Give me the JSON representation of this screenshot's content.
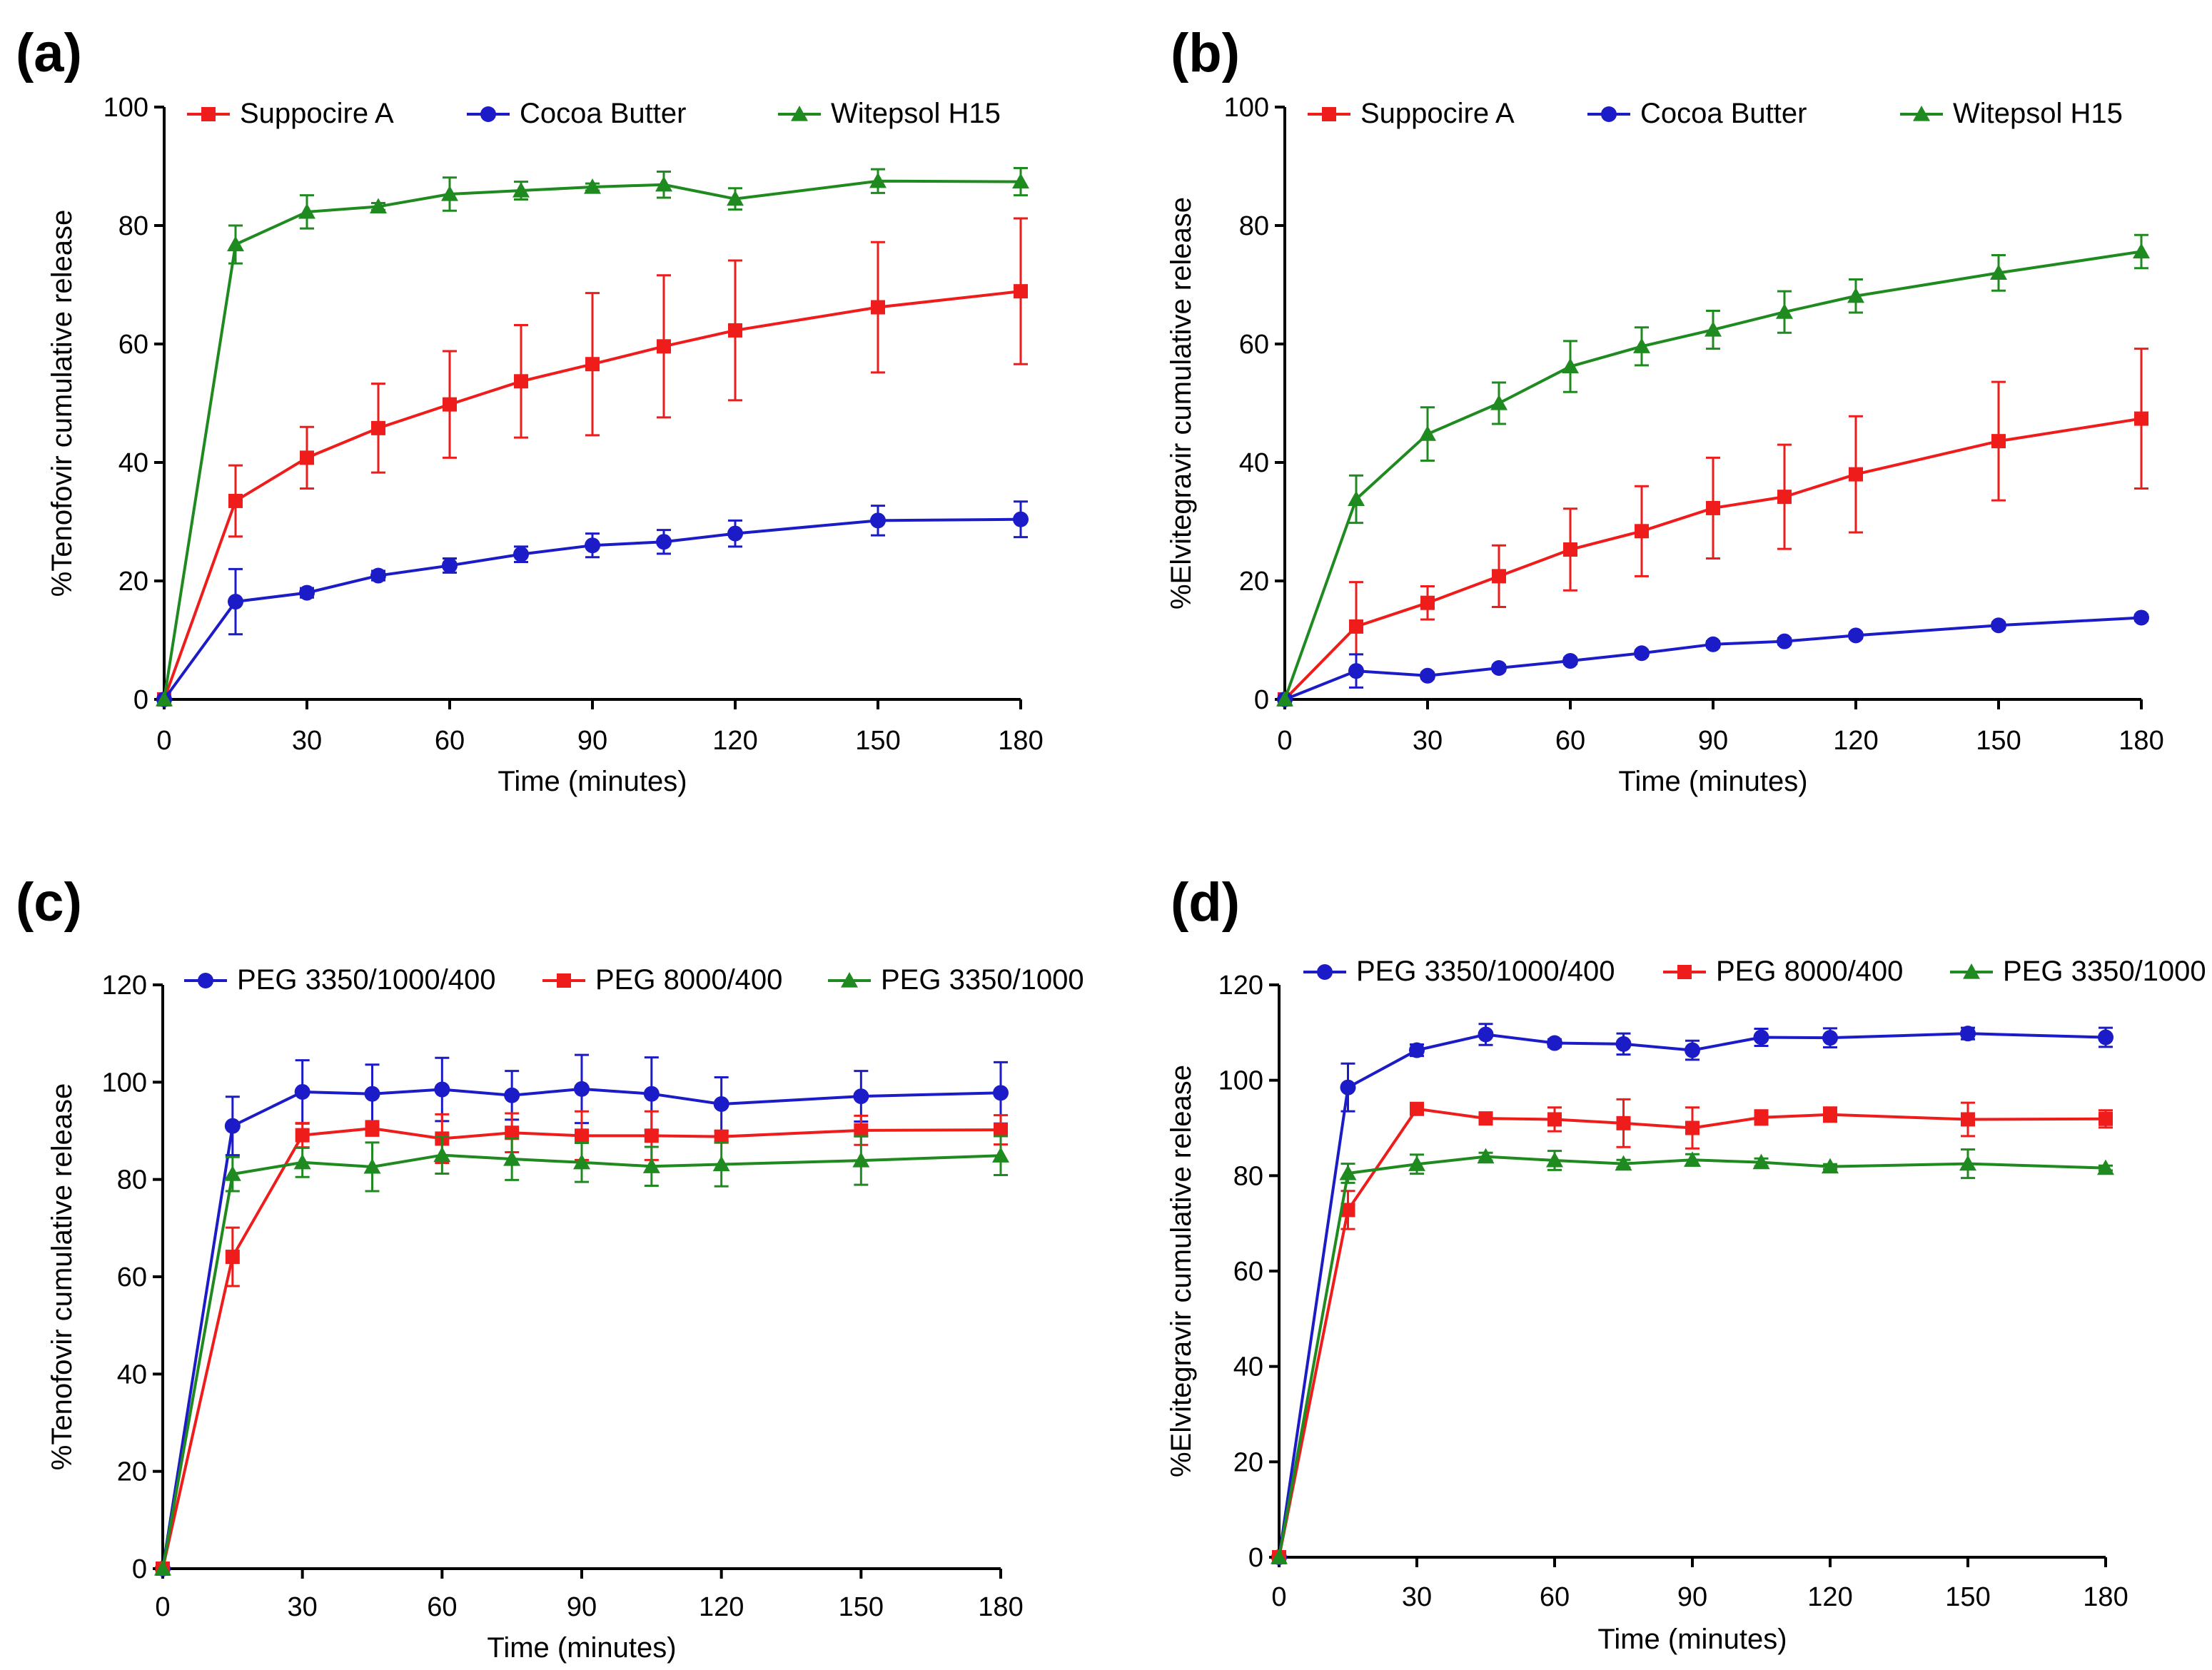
{
  "figure": {
    "colors": {
      "red": "#ef1c1c",
      "blue": "#1b1bc8",
      "green": "#1f8a1f",
      "axis": "#000000"
    }
  },
  "chart_data": [
    {
      "panel": "(a)",
      "type": "line",
      "xlabel": "Time (minutes)",
      "ylabel": "%Tenofovir cumulative release",
      "xlim": [
        0,
        180
      ],
      "ylim": [
        0,
        100
      ],
      "xticks": [
        0,
        30,
        60,
        90,
        120,
        150,
        180
      ],
      "yticks": [
        0,
        20,
        40,
        60,
        80,
        100
      ],
      "legend_position": "top",
      "series": [
        {
          "name": "Suppocire A",
          "color": "#ef1c1c",
          "marker": "square",
          "x": [
            0,
            15,
            30,
            45,
            60,
            75,
            90,
            105,
            120,
            150,
            180
          ],
          "y": [
            0,
            33.5,
            40.8,
            45.8,
            49.8,
            53.7,
            56.6,
            59.6,
            62.3,
            66.2,
            68.9
          ],
          "err": [
            0,
            6,
            5.2,
            7.5,
            9,
            9.5,
            12,
            12,
            11.8,
            11,
            12.3
          ]
        },
        {
          "name": "Cocoa Butter",
          "color": "#1b1bc8",
          "marker": "circle",
          "x": [
            0,
            15,
            30,
            45,
            60,
            75,
            90,
            105,
            120,
            150,
            180
          ],
          "y": [
            0,
            16.5,
            18,
            20.9,
            22.6,
            24.5,
            26,
            26.6,
            28,
            30.2,
            30.4
          ],
          "err": [
            0,
            5.5,
            0.8,
            0.8,
            1.2,
            1.3,
            2,
            2,
            2.2,
            2.5,
            3
          ]
        },
        {
          "name": "Witepsol H15",
          "color": "#1f8a1f",
          "marker": "triangle",
          "x": [
            0,
            15,
            30,
            45,
            60,
            75,
            90,
            105,
            120,
            150,
            180
          ],
          "y": [
            0,
            76.8,
            82.3,
            83.2,
            85.3,
            85.9,
            86.5,
            86.9,
            84.5,
            87.5,
            87.4
          ],
          "err": [
            0,
            3.2,
            2.8,
            0.6,
            2.8,
            1.5,
            0.6,
            2.2,
            1.8,
            2,
            2.3
          ]
        }
      ]
    },
    {
      "panel": "(b)",
      "type": "line",
      "xlabel": "Time (minutes)",
      "ylabel": "%Elvitegravir cumulative release",
      "xlim": [
        0,
        180
      ],
      "ylim": [
        0,
        100
      ],
      "xticks": [
        0,
        30,
        60,
        90,
        120,
        150,
        180
      ],
      "yticks": [
        0,
        20,
        40,
        60,
        80,
        100
      ],
      "legend_position": "top",
      "series": [
        {
          "name": "Suppocire A",
          "color": "#ef1c1c",
          "marker": "square",
          "x": [
            0,
            15,
            30,
            45,
            60,
            75,
            90,
            105,
            120,
            150,
            180
          ],
          "y": [
            0,
            12.3,
            16.3,
            20.8,
            25.3,
            28.4,
            32.3,
            34.2,
            38,
            43.6,
            47.4
          ],
          "err": [
            0,
            7.5,
            2.8,
            5.2,
            6.9,
            7.6,
            8.5,
            8.8,
            9.8,
            10,
            11.8
          ]
        },
        {
          "name": "Cocoa Butter",
          "color": "#1b1bc8",
          "marker": "circle",
          "x": [
            0,
            15,
            30,
            45,
            60,
            75,
            90,
            105,
            120,
            150,
            180
          ],
          "y": [
            0,
            4.8,
            4,
            5.3,
            6.5,
            7.8,
            9.3,
            9.8,
            10.8,
            12.5,
            13.8
          ],
          "err": [
            0,
            2.8,
            0.5,
            0.5,
            0.5,
            0.5,
            0.5,
            0.5,
            0.5,
            0.5,
            0.5
          ]
        },
        {
          "name": "Witepsol H15",
          "color": "#1f8a1f",
          "marker": "triangle",
          "x": [
            0,
            15,
            30,
            45,
            60,
            75,
            90,
            105,
            120,
            150,
            180
          ],
          "y": [
            0,
            33.8,
            44.8,
            50,
            56.2,
            59.6,
            62.4,
            65.4,
            68.1,
            72,
            75.6
          ],
          "err": [
            0,
            4,
            4.5,
            3.5,
            4.3,
            3.2,
            3.2,
            3.5,
            2.8,
            3,
            2.8
          ]
        }
      ]
    },
    {
      "panel": "(c)",
      "type": "line",
      "xlabel": "Time (minutes)",
      "ylabel": "%Tenofovir cumulative release",
      "xlim": [
        0,
        180
      ],
      "ylim": [
        0,
        120
      ],
      "xticks": [
        0,
        30,
        60,
        90,
        120,
        150,
        180
      ],
      "yticks": [
        0,
        20,
        40,
        60,
        80,
        100,
        120
      ],
      "legend_position": "top",
      "series": [
        {
          "name": "PEG 3350/1000/400",
          "color": "#1b1bc8",
          "marker": "circle",
          "x": [
            0,
            15,
            30,
            45,
            60,
            75,
            90,
            105,
            120,
            150,
            180
          ],
          "y": [
            0,
            91,
            98,
            97.6,
            98.5,
            97.3,
            98.6,
            97.6,
            95.5,
            97.1,
            97.8
          ],
          "err": [
            0,
            6,
            6.5,
            6,
            6.5,
            5,
            7,
            7.5,
            5.5,
            5.2,
            6.3
          ]
        },
        {
          "name": "PEG 8000/400",
          "color": "#ef1c1c",
          "marker": "square",
          "x": [
            0,
            15,
            30,
            45,
            60,
            75,
            90,
            105,
            120,
            150,
            180
          ],
          "y": [
            0,
            64.1,
            89.1,
            90.5,
            88.4,
            89.6,
            89,
            89,
            88.8,
            90.1,
            90.2
          ],
          "err": [
            0,
            6,
            2.5,
            1.5,
            5,
            4,
            5,
            5,
            1,
            3,
            3
          ]
        },
        {
          "name": "PEG 3350/1000",
          "color": "#1f8a1f",
          "marker": "triangle",
          "x": [
            0,
            15,
            30,
            45,
            60,
            75,
            90,
            105,
            120,
            150,
            180
          ],
          "y": [
            0,
            81.1,
            83.5,
            82.6,
            85,
            84.2,
            83.5,
            82.7,
            83.1,
            83.9,
            84.9
          ],
          "err": [
            0,
            3.5,
            3,
            5,
            3.8,
            4.3,
            4,
            4,
            4.5,
            5,
            4
          ]
        }
      ]
    },
    {
      "panel": "(d)",
      "type": "line",
      "xlabel": "Time (minutes)",
      "ylabel": "%Elvitegravir cumulative release",
      "xlim": [
        0,
        180
      ],
      "ylim": [
        0,
        120
      ],
      "xticks": [
        0,
        30,
        60,
        90,
        120,
        150,
        180
      ],
      "yticks": [
        0,
        20,
        40,
        60,
        80,
        100,
        120
      ],
      "legend_position": "top",
      "series": [
        {
          "name": "PEG 3350/1000/400",
          "color": "#1b1bc8",
          "marker": "circle",
          "x": [
            0,
            15,
            30,
            45,
            60,
            75,
            90,
            105,
            120,
            150,
            180
          ],
          "y": [
            0,
            98.5,
            106.3,
            109.6,
            107.8,
            107.6,
            106.3,
            109,
            108.9,
            109.8,
            109
          ],
          "err": [
            0,
            5,
            1.2,
            2.2,
            0.8,
            2.2,
            2,
            1.8,
            2,
            1.2,
            2
          ]
        },
        {
          "name": "PEG 8000/400",
          "color": "#ef1c1c",
          "marker": "square",
          "x": [
            0,
            15,
            30,
            45,
            60,
            75,
            90,
            105,
            120,
            150,
            180
          ],
          "y": [
            0,
            72.8,
            94,
            92,
            91.8,
            91,
            90,
            92.2,
            92.8,
            91.8,
            91.9
          ],
          "err": [
            0,
            4,
            1,
            1,
            2.5,
            5,
            4.3,
            1.5,
            1.5,
            3.5,
            1.8
          ]
        },
        {
          "name": "PEG 3350/1000",
          "color": "#1f8a1f",
          "marker": "triangle",
          "x": [
            0,
            15,
            30,
            45,
            60,
            75,
            90,
            105,
            120,
            150,
            180
          ],
          "y": [
            0,
            80.5,
            82.4,
            84,
            83.2,
            82.5,
            83.3,
            82.8,
            81.9,
            82.5,
            81.6
          ],
          "err": [
            0,
            2,
            2,
            0.8,
            2,
            0.8,
            1.2,
            0.8,
            0.5,
            3,
            0.5
          ]
        }
      ]
    }
  ]
}
